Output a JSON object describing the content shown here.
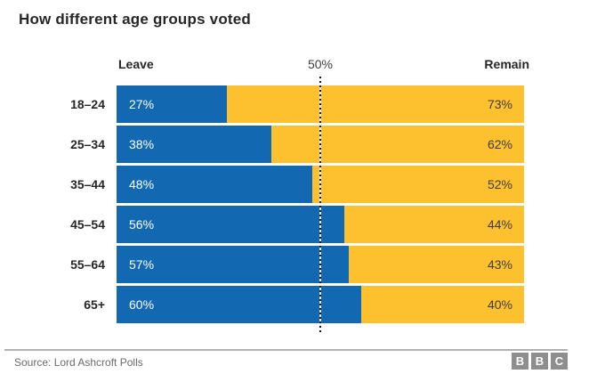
{
  "title": "How different age groups voted",
  "header": {
    "leave_label": "Leave",
    "center_label": "50%",
    "remain_label": "Remain"
  },
  "chart_data": {
    "type": "bar",
    "subtype": "horizontal-stacked",
    "title": "How different age groups voted",
    "categories": [
      "18–24",
      "25–34",
      "35–44",
      "45–54",
      "55–64",
      "65+"
    ],
    "series": [
      {
        "name": "Leave",
        "color": "#1268b1",
        "values": [
          27,
          38,
          48,
          56,
          57,
          60
        ]
      },
      {
        "name": "Remain",
        "color": "#fdc02e",
        "values": [
          73,
          62,
          52,
          44,
          43,
          40
        ]
      }
    ],
    "value_suffix": "%",
    "xlim": [
      0,
      100
    ],
    "reference_line": {
      "value": 50,
      "label": "50%",
      "style": "dotted"
    },
    "legend_position": "top-as-column-headers",
    "grid": false
  },
  "rows": [
    {
      "age": "18–24",
      "leave": "27%",
      "remain": "73%",
      "leave_pct": 27
    },
    {
      "age": "25–34",
      "leave": "38%",
      "remain": "62%",
      "leave_pct": 38
    },
    {
      "age": "35–44",
      "leave": "48%",
      "remain": "52%",
      "leave_pct": 48
    },
    {
      "age": "45–54",
      "leave": "56%",
      "remain": "44%",
      "leave_pct": 56
    },
    {
      "age": "55–64",
      "leave": "57%",
      "remain": "43%",
      "leave_pct": 57
    },
    {
      "age": "65+",
      "leave": "60%",
      "remain": "40%",
      "leave_pct": 60
    }
  ],
  "footer": {
    "source": "Source: Lord Ashcroft Polls",
    "logo_letters": [
      "B",
      "B",
      "C"
    ]
  },
  "colors": {
    "leave": "#1268b1",
    "remain": "#fdc02e",
    "title_text": "#262626",
    "source_text": "#6b6b6b",
    "logo_bg": "#8e8e8e",
    "divider": "#b1b1b1"
  }
}
